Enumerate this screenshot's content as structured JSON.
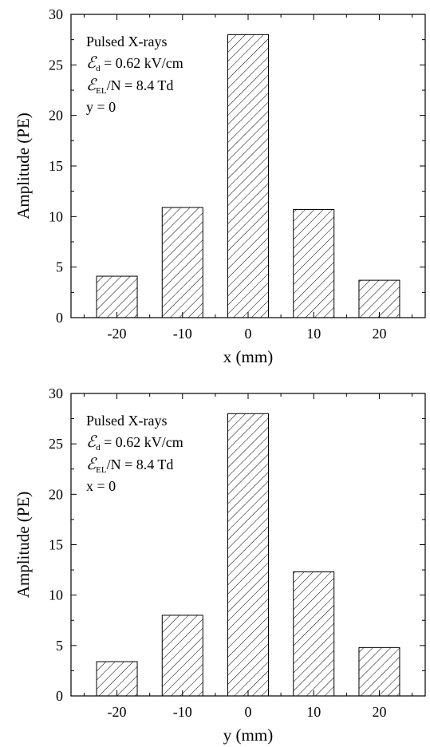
{
  "chart_data": [
    {
      "type": "bar",
      "categories": [
        "-20",
        "-10",
        "0",
        "10",
        "20"
      ],
      "x": [
        -20,
        -10,
        0,
        10,
        20
      ],
      "values": [
        4.1,
        10.9,
        28.0,
        10.7,
        3.7
      ],
      "xlabel": "x (mm)",
      "ylabel": "Amplitude (PE)",
      "ylim": [
        0,
        30
      ],
      "xlim": [
        -27,
        27
      ],
      "yticks": [
        0,
        5,
        10,
        15,
        20,
        25,
        30
      ],
      "bar_fill": "hatched",
      "grid": false,
      "annotations": {
        "source": "Pulsed X-rays",
        "drift_symbol": "ℰ",
        "drift_sub": "d",
        "drift_value": " = 0.62 kV/cm",
        "el_symbol": "ℰ",
        "el_sub": "EL",
        "el_value": "/N = 8.4 Td",
        "position": "y = 0"
      }
    },
    {
      "type": "bar",
      "categories": [
        "-20",
        "-10",
        "0",
        "10",
        "20"
      ],
      "x": [
        -20,
        -10,
        0,
        10,
        20
      ],
      "values": [
        3.4,
        8.0,
        28.0,
        12.3,
        4.8
      ],
      "xlabel": "y (mm)",
      "ylabel": "Amplitude (PE)",
      "ylim": [
        0,
        30
      ],
      "xlim": [
        -27,
        27
      ],
      "yticks": [
        0,
        5,
        10,
        15,
        20,
        25,
        30
      ],
      "bar_fill": "hatched",
      "grid": false,
      "annotations": {
        "source": "Pulsed X-rays",
        "drift_symbol": "ℰ",
        "drift_sub": "d",
        "drift_value": " = 0.62 kV/cm",
        "el_symbol": "ℰ",
        "el_sub": "EL",
        "el_value": "/N = 8.4 Td",
        "position": "x = 0"
      }
    }
  ]
}
